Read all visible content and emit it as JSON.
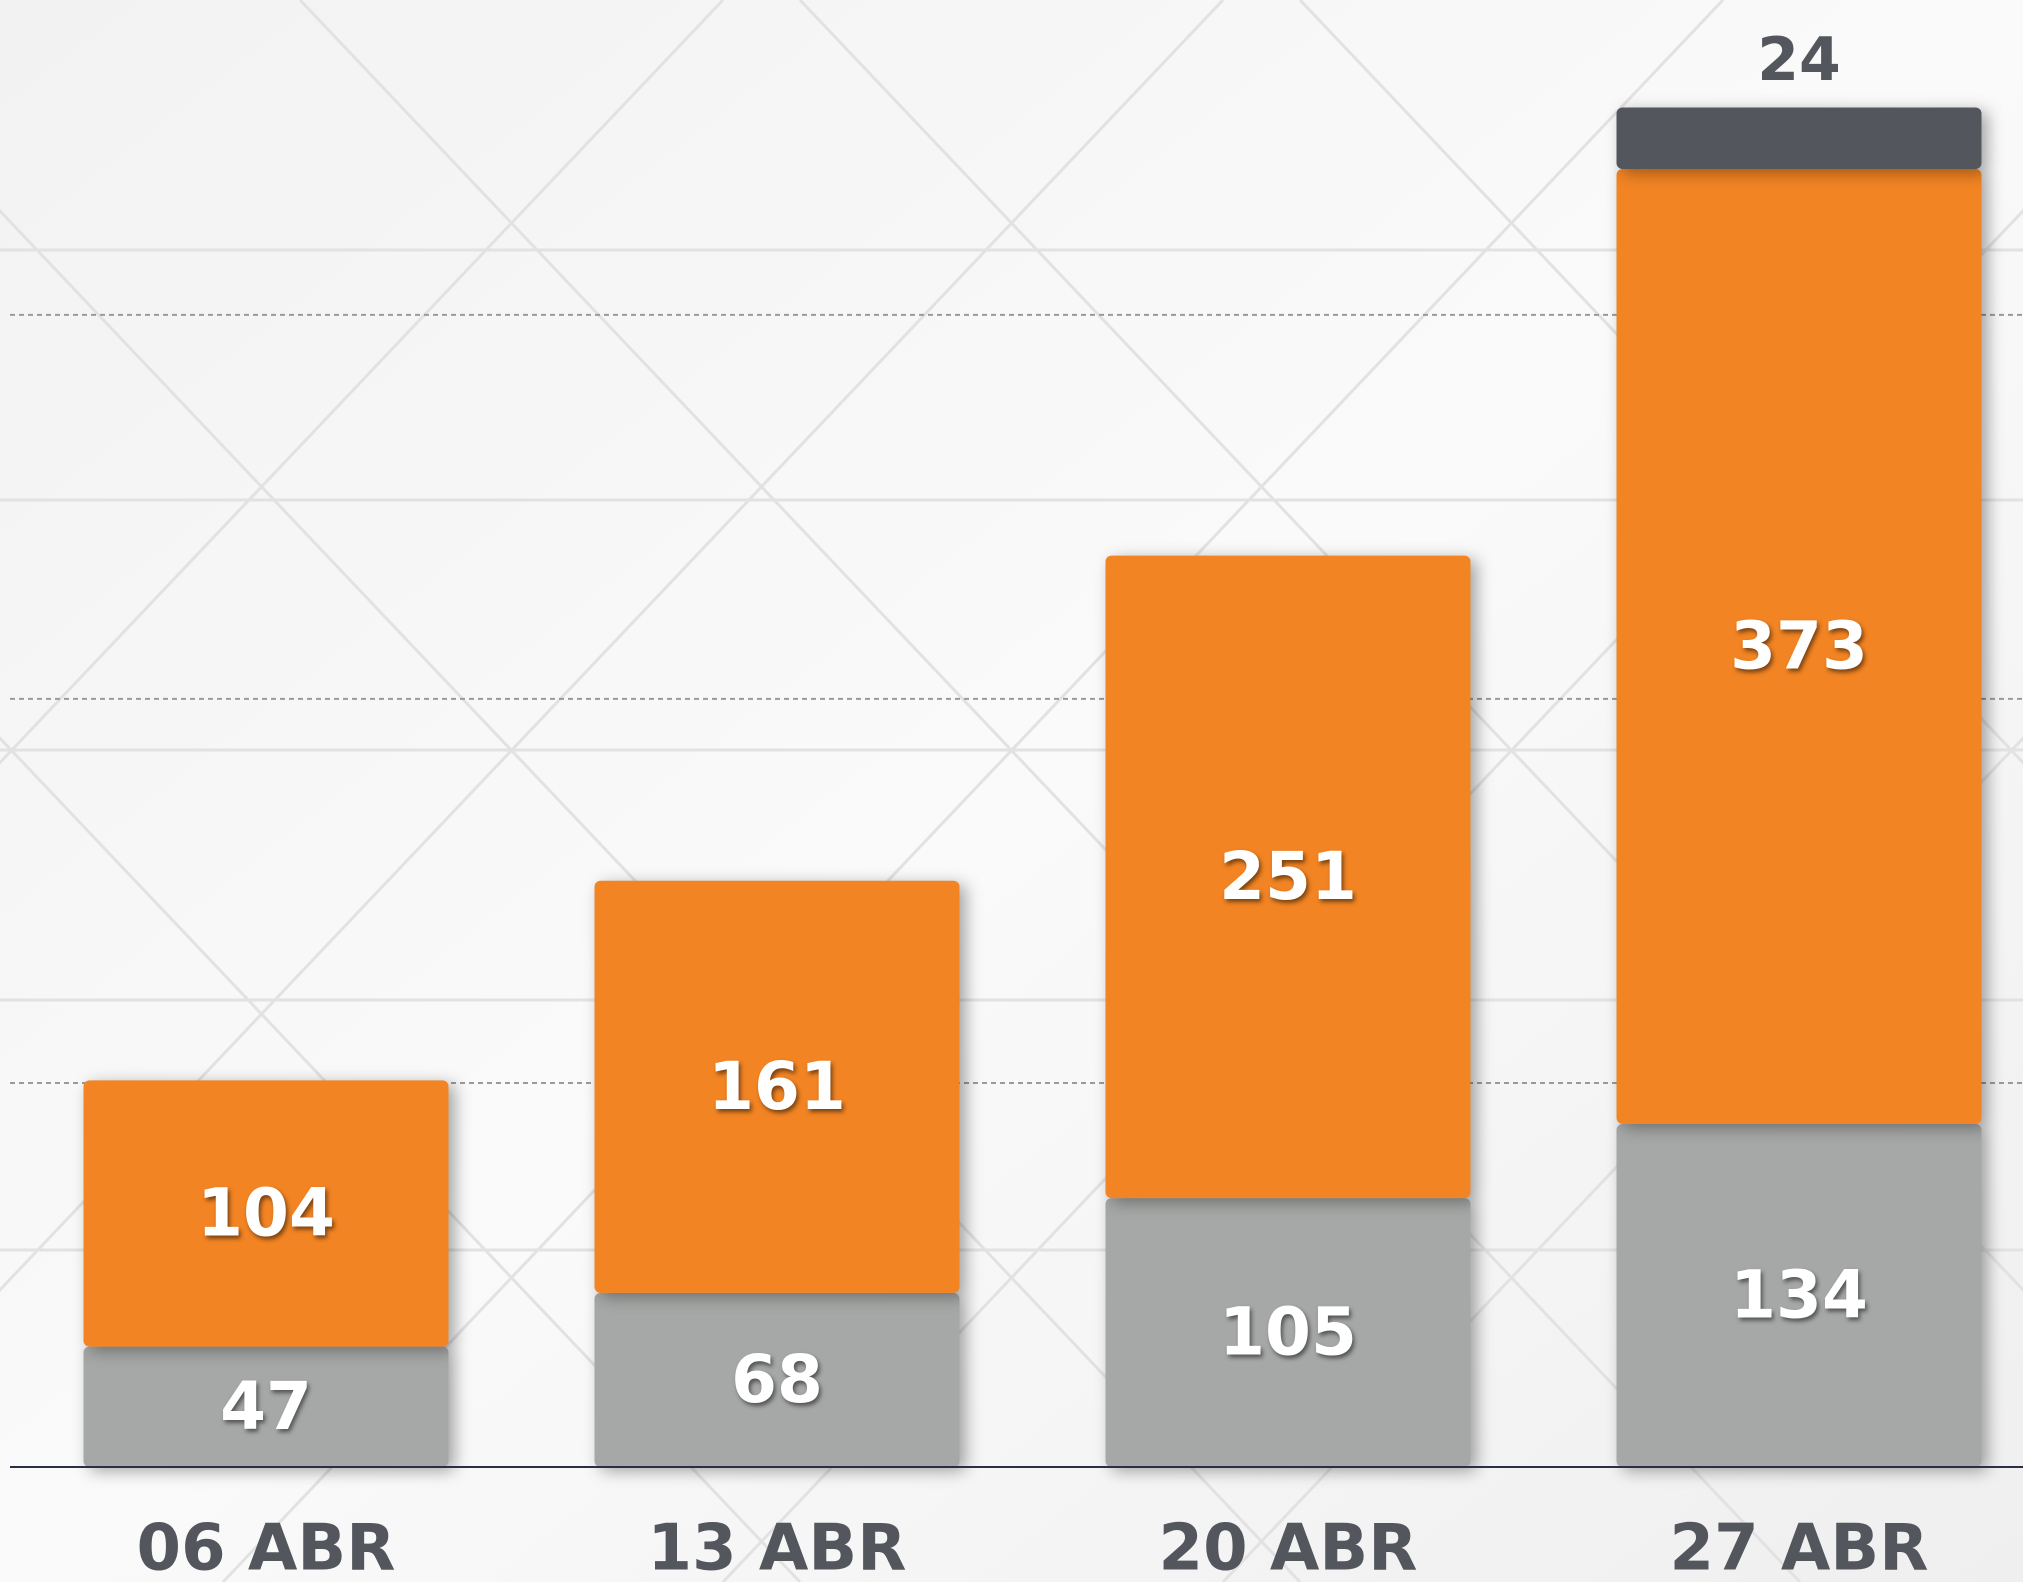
{
  "chart_data": {
    "type": "stacked_bar",
    "categories": [
      "06 ABR",
      "13 ABR",
      "20 ABR",
      "27 ABR"
    ],
    "series": [
      {
        "color": "#a6a8a7",
        "values": [
          47,
          68,
          105,
          134
        ]
      },
      {
        "color": "#f28423",
        "values": [
          104,
          161,
          251,
          373
        ]
      },
      {
        "color": "#53575d",
        "values": [
          null,
          null,
          null,
          24
        ]
      }
    ],
    "ylim": [
      0,
      573
    ],
    "yticks": [
      150,
      300,
      450
    ],
    "grid": true
  }
}
